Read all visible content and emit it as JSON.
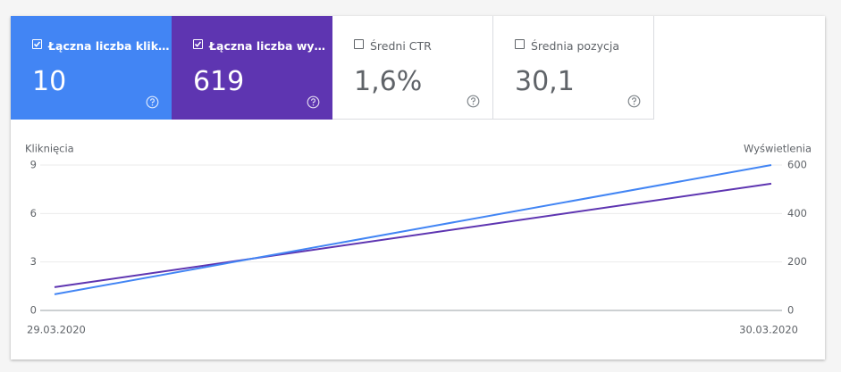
{
  "cards": [
    {
      "label": "Łączna liczba klik…",
      "value": "10",
      "checked": true,
      "color": "#4285f4"
    },
    {
      "label": "Łączna liczba wy…",
      "value": "619",
      "checked": true,
      "color": "#5e35b1"
    },
    {
      "label": "Średni CTR",
      "value": "1,6%",
      "checked": false,
      "color": "#ffffff"
    },
    {
      "label": "Średnia pozycja",
      "value": "30,1",
      "checked": false,
      "color": "#ffffff"
    }
  ],
  "chart_data": {
    "type": "line",
    "ylabel": "Kliknięcia",
    "y2label": "Wyświetlenia",
    "categories": [
      "29.03.2020",
      "30.03.2020"
    ],
    "series": [
      {
        "color": "#4285f4",
        "values": [
          1,
          9
        ]
      },
      {
        "color": "#5e35b1",
        "values": [
          96,
          523
        ],
        "axis": "y2"
      }
    ],
    "ylim": [
      0,
      9
    ],
    "yticks": [
      0,
      3,
      6,
      9
    ],
    "y2lim": [
      0,
      600
    ],
    "y2ticks": [
      0,
      200,
      400,
      600
    ],
    "grid": true
  }
}
